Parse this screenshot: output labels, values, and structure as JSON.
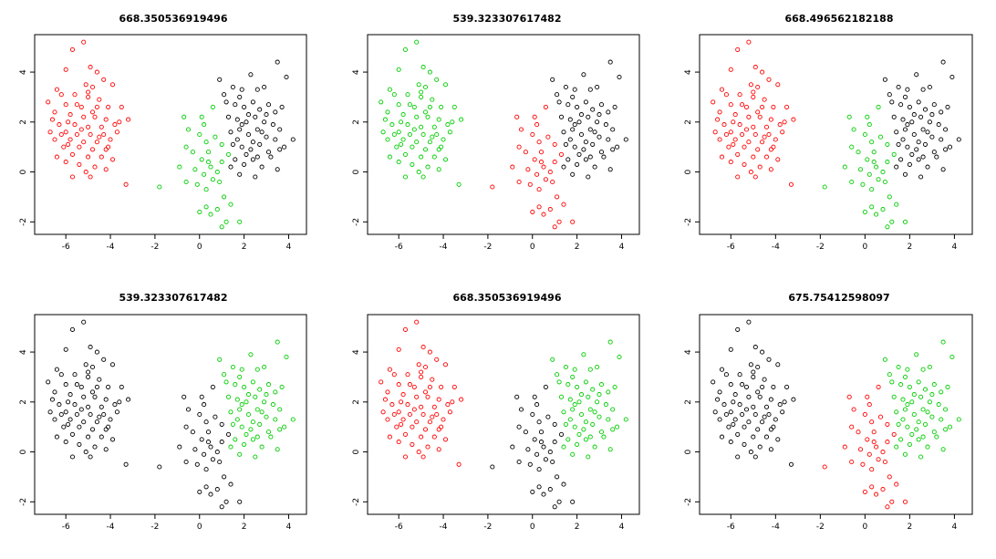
{
  "colors": {
    "black": "#000000",
    "red": "#ff0000",
    "green": "#00cd00"
  },
  "chart_data": [
    {
      "type": "scatter",
      "title": "668.350536919496",
      "coloring": [
        "red",
        "green",
        "black"
      ],
      "xlim": [
        -7.4,
        4.8
      ],
      "ylim": [
        -2.5,
        5.5
      ],
      "x_ticks": [
        -6,
        -4,
        -2,
        0,
        2,
        4
      ],
      "y_ticks": [
        -2,
        0,
        2,
        4
      ],
      "grid": false,
      "legend": "none"
    },
    {
      "type": "scatter",
      "title": "539.323307617482",
      "coloring": [
        "green",
        "red",
        "black"
      ],
      "xlim": [
        -7.4,
        4.8
      ],
      "ylim": [
        -2.5,
        5.5
      ],
      "x_ticks": [
        -6,
        -4,
        -2,
        0,
        2,
        4
      ],
      "y_ticks": [
        -2,
        0,
        2,
        4
      ],
      "grid": false,
      "legend": "none"
    },
    {
      "type": "scatter",
      "title": "668.496562182188",
      "coloring": [
        "red",
        "green",
        "black"
      ],
      "xlim": [
        -7.4,
        4.8
      ],
      "ylim": [
        -2.5,
        5.5
      ],
      "x_ticks": [
        -6,
        -4,
        -2,
        0,
        2,
        4
      ],
      "y_ticks": [
        -2,
        0,
        2,
        4
      ],
      "grid": false,
      "legend": "none"
    },
    {
      "type": "scatter",
      "title": "539.323307617482",
      "coloring": [
        "black",
        "black",
        "green"
      ],
      "xlim": [
        -7.4,
        4.8
      ],
      "ylim": [
        -2.5,
        5.5
      ],
      "x_ticks": [
        -6,
        -4,
        -2,
        0,
        2,
        4
      ],
      "y_ticks": [
        -2,
        0,
        2,
        4
      ],
      "grid": false,
      "legend": "none"
    },
    {
      "type": "scatter",
      "title": "668.350536919496",
      "coloring": [
        "red",
        "black",
        "green"
      ],
      "xlim": [
        -7.4,
        4.8
      ],
      "ylim": [
        -2.5,
        5.5
      ],
      "x_ticks": [
        -6,
        -4,
        -2,
        0,
        2,
        4
      ],
      "y_ticks": [
        -2,
        0,
        2,
        4
      ],
      "grid": false,
      "legend": "none"
    },
    {
      "type": "scatter",
      "title": "675.75412598097",
      "coloring": [
        "black",
        "red",
        "green"
      ],
      "xlim": [
        -7.4,
        4.8
      ],
      "ylim": [
        -2.5,
        5.5
      ],
      "x_ticks": [
        -6,
        -4,
        -2,
        0,
        2,
        4
      ],
      "y_ticks": [
        -2,
        0,
        2,
        4
      ],
      "grid": false,
      "legend": "none"
    }
  ],
  "points": {
    "left_cluster": [
      [
        -5.2,
        5.2
      ],
      [
        -5.7,
        4.9
      ],
      [
        -6.0,
        4.1
      ],
      [
        -4.9,
        4.2
      ],
      [
        -4.6,
        4.0
      ],
      [
        -4.3,
        3.7
      ],
      [
        -6.4,
        3.3
      ],
      [
        -5.1,
        3.5
      ],
      [
        -4.8,
        3.4
      ],
      [
        -3.9,
        3.5
      ],
      [
        -6.2,
        3.1
      ],
      [
        -5.6,
        3.1
      ],
      [
        -5.0,
        3.0
      ],
      [
        -4.5,
        2.9
      ],
      [
        -6.8,
        2.8
      ],
      [
        -6.0,
        2.7
      ],
      [
        -5.3,
        2.6
      ],
      [
        -4.1,
        2.6
      ],
      [
        -3.5,
        2.6
      ],
      [
        -6.5,
        2.4
      ],
      [
        -5.8,
        2.3
      ],
      [
        -5.2,
        2.2
      ],
      [
        -4.7,
        2.2
      ],
      [
        -4.2,
        2.1
      ],
      [
        -3.6,
        2.0
      ],
      [
        -3.2,
        2.1
      ],
      [
        -6.3,
        1.9
      ],
      [
        -5.6,
        1.9
      ],
      [
        -5.0,
        1.8
      ],
      [
        -4.4,
        1.8
      ],
      [
        -6.7,
        1.6
      ],
      [
        -6.0,
        1.6
      ],
      [
        -5.5,
        1.5
      ],
      [
        -4.9,
        1.5
      ],
      [
        -4.3,
        1.5
      ],
      [
        -3.7,
        1.6
      ],
      [
        -6.5,
        1.3
      ],
      [
        -5.8,
        1.3
      ],
      [
        -5.2,
        1.2
      ],
      [
        -4.6,
        1.2
      ],
      [
        -4.0,
        1.3
      ],
      [
        -6.1,
        1.0
      ],
      [
        -5.4,
        1.0
      ],
      [
        -4.8,
        0.9
      ],
      [
        -4.2,
        0.9
      ],
      [
        -5.7,
        0.7
      ],
      [
        -5.0,
        0.6
      ],
      [
        -4.4,
        0.6
      ],
      [
        -3.9,
        0.5
      ],
      [
        -6.0,
        0.4
      ],
      [
        -5.4,
        0.3
      ],
      [
        -4.7,
        0.2
      ],
      [
        -5.1,
        0.0
      ],
      [
        -5.7,
        -0.2
      ],
      [
        -4.9,
        -0.2
      ],
      [
        -4.2,
        0.1
      ],
      [
        -3.3,
        -0.5
      ],
      [
        -6.4,
        0.6
      ],
      [
        -5.9,
        2.0
      ],
      [
        -4.6,
        2.6
      ],
      [
        -5.3,
        1.7
      ],
      [
        -4.5,
        1.4
      ],
      [
        -5.9,
        1.1
      ],
      [
        -6.6,
        2.1
      ],
      [
        -5.0,
        3.2
      ],
      [
        -3.8,
        1.9
      ],
      [
        -4.8,
        2.4
      ],
      [
        -5.5,
        2.7
      ],
      [
        -6.2,
        1.5
      ],
      [
        -4.1,
        1.0
      ]
    ],
    "mid_cluster": [
      [
        -1.8,
        -0.6
      ],
      [
        -0.7,
        2.2
      ],
      [
        -0.5,
        1.7
      ],
      [
        -0.6,
        1.0
      ],
      [
        -0.3,
        0.8
      ],
      [
        -0.9,
        0.2
      ],
      [
        -0.6,
        -0.4
      ],
      [
        0.1,
        2.2
      ],
      [
        0.2,
        1.9
      ],
      [
        0.0,
        1.5
      ],
      [
        0.3,
        1.2
      ],
      [
        0.1,
        0.5
      ],
      [
        0.4,
        0.8
      ],
      [
        0.5,
        0.2
      ],
      [
        0.2,
        -0.1
      ],
      [
        0.6,
        -0.3
      ],
      [
        0.8,
        0.0
      ],
      [
        0.9,
        -0.4
      ],
      [
        1.0,
        0.4
      ],
      [
        0.6,
        2.6
      ],
      [
        1.0,
        1.1
      ],
      [
        0.3,
        -0.7
      ],
      [
        0.0,
        -1.6
      ],
      [
        0.5,
        -1.7
      ],
      [
        0.8,
        -1.5
      ],
      [
        1.1,
        -1.0
      ],
      [
        1.2,
        -2.0
      ],
      [
        1.0,
        -2.2
      ],
      [
        1.4,
        -1.3
      ],
      [
        0.3,
        -1.4
      ],
      [
        1.8,
        -2.0
      ],
      [
        -0.2,
        0.1
      ],
      [
        0.7,
        1.4
      ],
      [
        1.3,
        0.7
      ],
      [
        -0.1,
        -0.5
      ],
      [
        0.4,
        0.4
      ]
    ],
    "right_cluster": [
      [
        0.9,
        3.7
      ],
      [
        1.1,
        3.1
      ],
      [
        1.5,
        3.4
      ],
      [
        1.8,
        3.0
      ],
      [
        1.9,
        3.3
      ],
      [
        2.3,
        3.9
      ],
      [
        2.6,
        3.3
      ],
      [
        2.9,
        3.4
      ],
      [
        3.5,
        4.4
      ],
      [
        3.9,
        3.8
      ],
      [
        1.2,
        2.8
      ],
      [
        1.6,
        2.7
      ],
      [
        2.0,
        2.6
      ],
      [
        2.4,
        2.8
      ],
      [
        2.7,
        2.5
      ],
      [
        3.1,
        2.7
      ],
      [
        3.4,
        2.4
      ],
      [
        3.7,
        2.6
      ],
      [
        1.3,
        2.2
      ],
      [
        1.7,
        2.1
      ],
      [
        2.1,
        2.0
      ],
      [
        2.5,
        2.2
      ],
      [
        2.9,
        2.0
      ],
      [
        3.3,
        1.9
      ],
      [
        3.6,
        1.7
      ],
      [
        1.4,
        1.6
      ],
      [
        1.8,
        1.7
      ],
      [
        2.2,
        1.5
      ],
      [
        2.6,
        1.7
      ],
      [
        3.0,
        1.4
      ],
      [
        3.4,
        1.3
      ],
      [
        1.5,
        1.1
      ],
      [
        1.9,
        1.0
      ],
      [
        2.3,
        0.9
      ],
      [
        2.7,
        1.1
      ],
      [
        3.1,
        0.8
      ],
      [
        3.6,
        0.9
      ],
      [
        4.2,
        1.3
      ],
      [
        1.6,
        0.5
      ],
      [
        2.0,
        0.3
      ],
      [
        2.4,
        0.5
      ],
      [
        2.8,
        0.2
      ],
      [
        3.2,
        0.6
      ],
      [
        3.5,
        0.1
      ],
      [
        1.8,
        -0.1
      ],
      [
        2.5,
        -0.2
      ],
      [
        1.9,
        1.9
      ],
      [
        2.2,
        2.3
      ],
      [
        2.8,
        1.6
      ],
      [
        1.7,
        1.3
      ],
      [
        3.0,
        2.3
      ],
      [
        2.4,
        1.2
      ],
      [
        2.1,
        0.7
      ],
      [
        3.8,
        1.0
      ],
      [
        1.4,
        0.2
      ],
      [
        2.6,
        0.6
      ]
    ]
  }
}
